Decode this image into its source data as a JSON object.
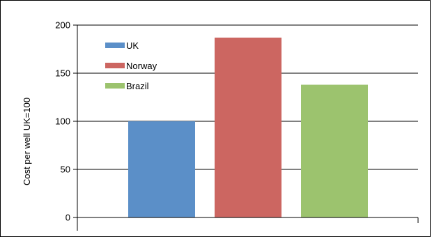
{
  "chart_data": {
    "type": "bar",
    "categories": [
      "UK",
      "Norway",
      "Brazil"
    ],
    "values": [
      100,
      187,
      138
    ],
    "colors": [
      "#5b8fc8",
      "#cc6661",
      "#9cc36e"
    ],
    "title": "",
    "xlabel": "",
    "ylabel": "Cost per well UK=100",
    "ylim": [
      0,
      200
    ],
    "yticks": [
      0,
      50,
      100,
      150,
      200
    ],
    "ytick_labels": [
      "0",
      "50",
      "100",
      "150",
      "200"
    ],
    "grid": true,
    "legend": {
      "placement": "top-left",
      "entries": [
        "UK",
        "Norway",
        "Brazil"
      ]
    }
  }
}
